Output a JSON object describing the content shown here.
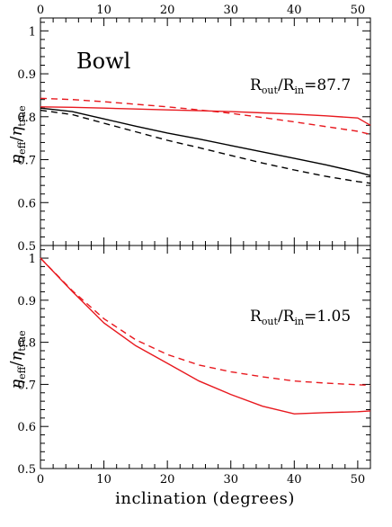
{
  "chart_data": [
    {
      "type": "line",
      "panel_label": "Bowl",
      "annotation": {
        "base": "R",
        "sub1": "out",
        "sep": "/R",
        "sub2": "in",
        "value": "=87.7"
      },
      "ylabel": {
        "base1": "η",
        "sub1": "eff",
        "sep": "/",
        "base2": "η",
        "sub2": "true"
      },
      "xlim": [
        0,
        52
      ],
      "ylim": [
        0.5,
        1.03
      ],
      "yticks": [
        "0.5",
        "0.6",
        "0.7",
        "0.8",
        "0.9",
        "1"
      ],
      "top_xticks": [
        "0",
        "10",
        "20",
        "30",
        "40",
        "50"
      ],
      "x_tick_values": [
        0,
        10,
        20,
        30,
        40,
        50
      ],
      "series": [
        {
          "color": "#e8191f",
          "dash": "solid",
          "x": [
            0,
            5,
            10,
            15,
            20,
            25,
            30,
            35,
            40,
            45,
            50,
            52
          ],
          "y": [
            0.823,
            0.822,
            0.82,
            0.818,
            0.816,
            0.814,
            0.812,
            0.809,
            0.806,
            0.802,
            0.797,
            0.78
          ]
        },
        {
          "color": "#e8191f",
          "dash": "dashed",
          "x": [
            0,
            5,
            10,
            15,
            20,
            25,
            30,
            35,
            40,
            45,
            50,
            52
          ],
          "y": [
            0.843,
            0.84,
            0.835,
            0.829,
            0.823,
            0.816,
            0.808,
            0.798,
            0.788,
            0.777,
            0.766,
            0.759
          ]
        },
        {
          "color": "#000000",
          "dash": "solid",
          "x": [
            0,
            5,
            10,
            15,
            20,
            25,
            30,
            35,
            40,
            45,
            50,
            52
          ],
          "y": [
            0.82,
            0.812,
            0.795,
            0.778,
            0.762,
            0.748,
            0.733,
            0.718,
            0.703,
            0.688,
            0.671,
            0.663
          ]
        },
        {
          "color": "#000000",
          "dash": "dashed",
          "x": [
            0,
            5,
            10,
            15,
            20,
            25,
            30,
            35,
            40,
            45,
            50,
            52
          ],
          "y": [
            0.815,
            0.805,
            0.785,
            0.765,
            0.745,
            0.728,
            0.71,
            0.692,
            0.676,
            0.661,
            0.649,
            0.645
          ]
        }
      ]
    },
    {
      "type": "line",
      "annotation": {
        "base": "R",
        "sub1": "out",
        "sep": "/R",
        "sub2": "in",
        "value": "=1.05"
      },
      "ylabel": {
        "base1": "η",
        "sub1": "eff",
        "sep": "/",
        "base2": "η",
        "sub2": "true"
      },
      "xlabel": "inclination (degrees)",
      "xlim": [
        0,
        52
      ],
      "ylim": [
        0.5,
        1.03
      ],
      "yticks": [
        "0.5",
        "0.6",
        "0.7",
        "0.8",
        "0.9",
        "1"
      ],
      "bottom_xticks": [
        "0",
        "10",
        "20",
        "30",
        "40",
        "50"
      ],
      "x_tick_values": [
        0,
        10,
        20,
        30,
        40,
        50
      ],
      "series": [
        {
          "color": "#e8191f",
          "dash": "solid",
          "x": [
            0,
            5,
            10,
            15,
            20,
            25,
            30,
            35,
            40,
            45,
            50,
            52
          ],
          "y": [
            1.0,
            0.921,
            0.846,
            0.792,
            0.75,
            0.708,
            0.676,
            0.648,
            0.63,
            0.633,
            0.635,
            0.637
          ]
        },
        {
          "color": "#e8191f",
          "dash": "dashed",
          "x": [
            0,
            5,
            10,
            15,
            20,
            25,
            30,
            35,
            40,
            45,
            50,
            52
          ],
          "y": [
            1.0,
            0.923,
            0.856,
            0.806,
            0.771,
            0.746,
            0.73,
            0.718,
            0.708,
            0.703,
            0.699,
            0.698
          ]
        }
      ]
    }
  ]
}
